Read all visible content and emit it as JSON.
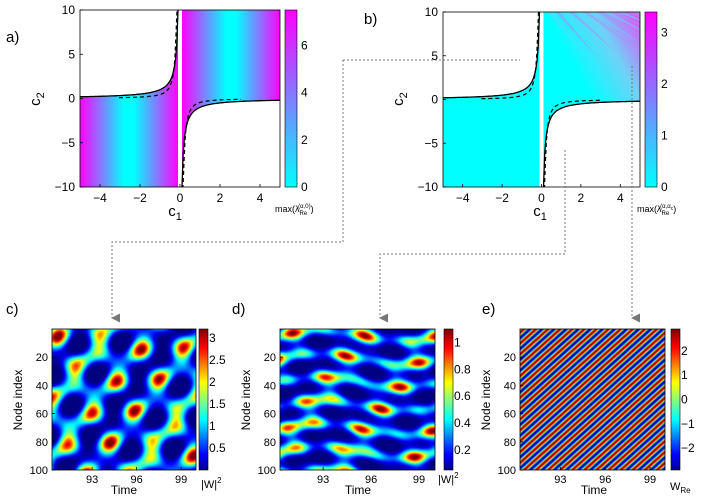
{
  "chart_data": [
    {
      "id": "a",
      "panel_label": "a)",
      "type": "heatmap",
      "xlabel": "c",
      "xlabel_sub": "1",
      "ylabel": "c",
      "ylabel_sub": "2",
      "xlim": [
        -5,
        5
      ],
      "ylim": [
        -10,
        10
      ],
      "xticks": [
        -4,
        -2,
        0,
        2,
        4
      ],
      "yticks": [
        -10,
        -5,
        0,
        5,
        10
      ],
      "colorbar": {
        "min": 0,
        "max": 7.5,
        "ticks": [
          0,
          2,
          4,
          6
        ],
        "label_main": "max(λ",
        "label_sub": "Re",
        "label_sup": "(α,0)",
        "label_close": ")"
      },
      "description_regions": "unstable regions c1*c2 < -1 shaded by growth rate"
    },
    {
      "id": "b",
      "panel_label": "b)",
      "type": "heatmap",
      "xlabel": "c",
      "xlabel_sub": "1",
      "ylabel": "c",
      "ylabel_sub": "2",
      "xlim": [
        -5,
        5
      ],
      "ylim": [
        -10,
        10
      ],
      "xticks": [
        -4,
        -2,
        0,
        2,
        4
      ],
      "yticks": [
        -10,
        -5,
        0,
        5,
        10
      ],
      "colorbar": {
        "min": 0,
        "max": 3.4,
        "ticks": [
          0,
          1,
          2,
          3
        ],
        "label_main": "max(λ",
        "label_sub": "Re",
        "label_sup": "(α,α",
        "label_sup2": "c",
        "label_close": ")"
      }
    },
    {
      "id": "c",
      "panel_label": "c)",
      "type": "heatmap",
      "xlabel": "Time",
      "ylabel": "Node index",
      "xticks": [
        93,
        96,
        99
      ],
      "yticks": [
        20,
        40,
        60,
        80,
        100
      ],
      "xlim": [
        90.3,
        100
      ],
      "ylim": [
        0,
        100
      ],
      "colorbar": {
        "min": 0,
        "max": 3.2,
        "ticks": [
          0.5,
          1,
          1.5,
          2,
          2.5,
          3
        ],
        "tick_labels": [
          "0.5",
          "1",
          "1.5",
          "2",
          "2.5",
          "3"
        ],
        "label_main": "|W|",
        "label_sup": "2"
      }
    },
    {
      "id": "d",
      "panel_label": "d)",
      "type": "heatmap",
      "xlabel": "Time",
      "ylabel": "Node index",
      "xticks": [
        93,
        96,
        99
      ],
      "yticks": [
        20,
        40,
        60,
        80,
        100
      ],
      "xlim": [
        90.3,
        100
      ],
      "ylim": [
        0,
        100
      ],
      "colorbar": {
        "min": 0.05,
        "max": 1.1,
        "ticks": [
          0.2,
          0.4,
          0.6,
          0.8,
          1
        ],
        "tick_labels": [
          "0.2",
          "0.4",
          "0.6",
          "0.8",
          "1"
        ],
        "label_main": "|W|",
        "label_sup": "2"
      }
    },
    {
      "id": "e",
      "panel_label": "e)",
      "type": "heatmap",
      "xlabel": "Time",
      "ylabel": "Node index",
      "xticks": [
        93,
        96,
        99
      ],
      "yticks": [
        20,
        40,
        60,
        80,
        100
      ],
      "xlim": [
        90.3,
        100
      ],
      "ylim": [
        0,
        100
      ],
      "colorbar": {
        "min": -2.9,
        "max": 2.9,
        "ticks": [
          -2,
          -1,
          0,
          1,
          2
        ],
        "tick_labels": [
          "−2",
          "−1",
          "0",
          "1",
          "2"
        ],
        "label_main": "W",
        "label_sub": "Re"
      }
    }
  ],
  "colors": {
    "cyan": "#00ffff",
    "magenta": "#ff00ff",
    "axis": "#000000",
    "connector": "#777777"
  }
}
